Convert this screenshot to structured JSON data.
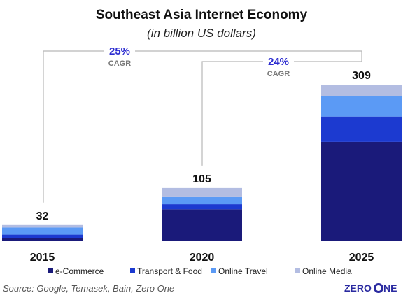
{
  "chart_data": {
    "type": "bar",
    "stacked": true,
    "title": "Southeast Asia Internet Economy",
    "subtitle": "(in billion US dollars)",
    "categories": [
      "2015",
      "2020",
      "2025"
    ],
    "totals": [
      "32",
      "105",
      "309"
    ],
    "series": [
      {
        "name": "e-Commerce",
        "color": "#1a1a7a",
        "values": [
          6,
          63,
          196
        ]
      },
      {
        "name": "Transport & Food",
        "color": "#1c3ad0",
        "values": [
          7,
          10,
          50
        ]
      },
      {
        "name": "Online Travel",
        "color": "#5b9af5",
        "values": [
          14,
          14,
          40
        ]
      },
      {
        "name": "Online Media",
        "color": "#b3bde2",
        "values": [
          5,
          18,
          23
        ]
      }
    ],
    "ylim": [
      0,
      309
    ],
    "legend_position": "bottom",
    "cagr": [
      {
        "value": "25%",
        "label": "CAGR",
        "from": "2015",
        "to": "2025"
      },
      {
        "value": "24%",
        "label": "CAGR",
        "from": "2020",
        "to": "2025"
      }
    ],
    "accent_color": "#2b2bd0"
  },
  "footer": {
    "source": "Source: Google, Temasek, Bain, Zero One",
    "logo_left": "ZERO",
    "logo_right": "NE"
  }
}
